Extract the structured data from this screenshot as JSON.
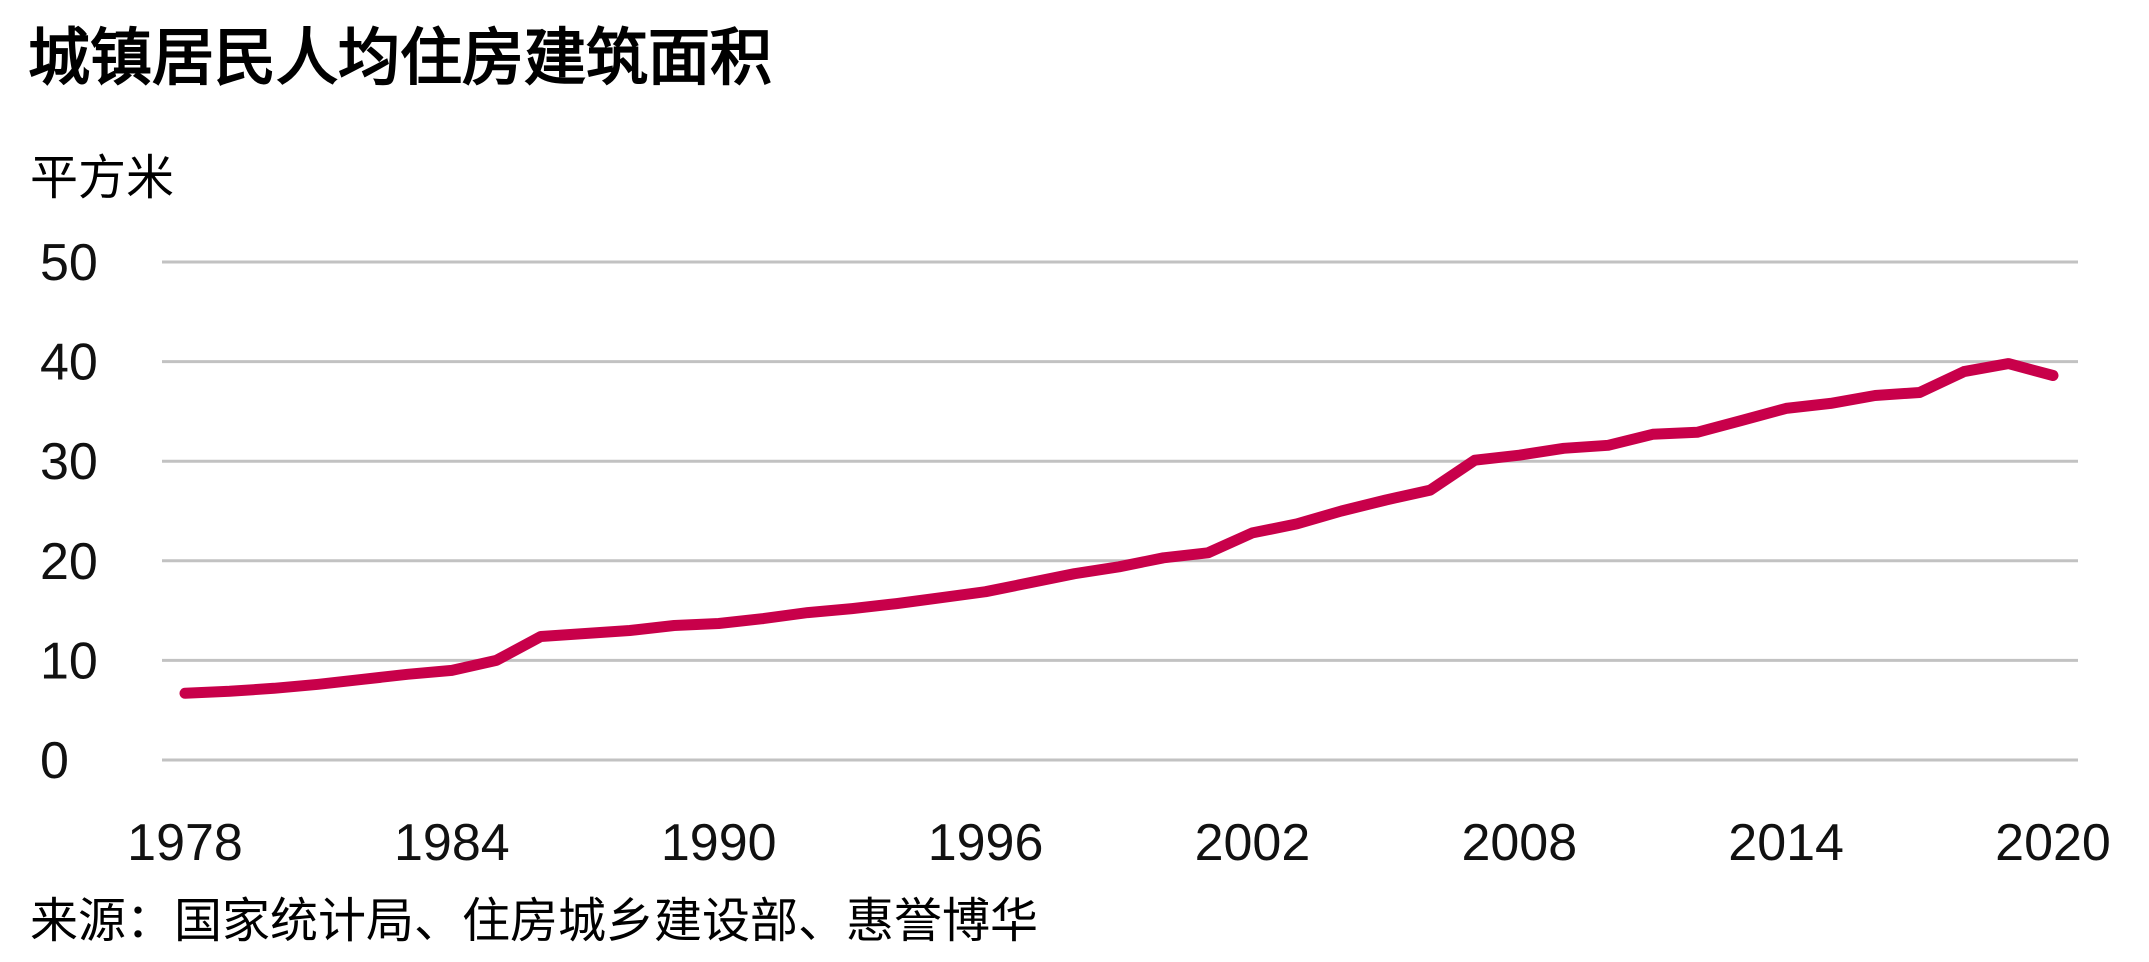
{
  "title": "城镇居民人均住房建筑面积",
  "unit_label": "平方米",
  "source": "来源：国家统计局、住房城乡建设部、惠誉博华",
  "colors": {
    "line": "#c8004a",
    "grid": "#c2c2c2"
  },
  "chart_data": {
    "type": "line",
    "title": "城镇居民人均住房建筑面积",
    "ylabel": "平方米",
    "xlabel": "",
    "ylim": [
      0,
      50
    ],
    "xlim": [
      1978,
      2020
    ],
    "yticks": [
      0,
      10,
      20,
      30,
      40,
      50
    ],
    "xticks": [
      1978,
      1984,
      1990,
      1996,
      2002,
      2008,
      2014,
      2020
    ],
    "grid": true,
    "legend": "none",
    "series": [
      {
        "x": [
          1978,
          1979,
          1980,
          1981,
          1982,
          1983,
          1984,
          1985,
          1986,
          1987,
          1988,
          1989,
          1990,
          1991,
          1992,
          1993,
          1994,
          1995,
          1996,
          1997,
          1998,
          1999,
          2000,
          2001,
          2002,
          2003,
          2004,
          2005,
          2006,
          2007,
          2008,
          2009,
          2010,
          2011,
          2012,
          2013,
          2014,
          2015,
          2016,
          2017,
          2018,
          2019,
          2020
        ],
        "values": [
          6.7,
          6.9,
          7.2,
          7.6,
          8.1,
          8.6,
          9.0,
          10.0,
          12.4,
          12.7,
          13.0,
          13.5,
          13.7,
          14.2,
          14.8,
          15.2,
          15.7,
          16.3,
          16.9,
          17.8,
          18.7,
          19.4,
          20.3,
          20.8,
          22.8,
          23.7,
          25.0,
          26.1,
          27.1,
          30.1,
          30.6,
          31.3,
          31.6,
          32.7,
          32.9,
          34.1,
          35.3,
          35.8,
          36.6,
          36.9,
          39.0,
          39.8,
          38.6
        ]
      }
    ]
  }
}
